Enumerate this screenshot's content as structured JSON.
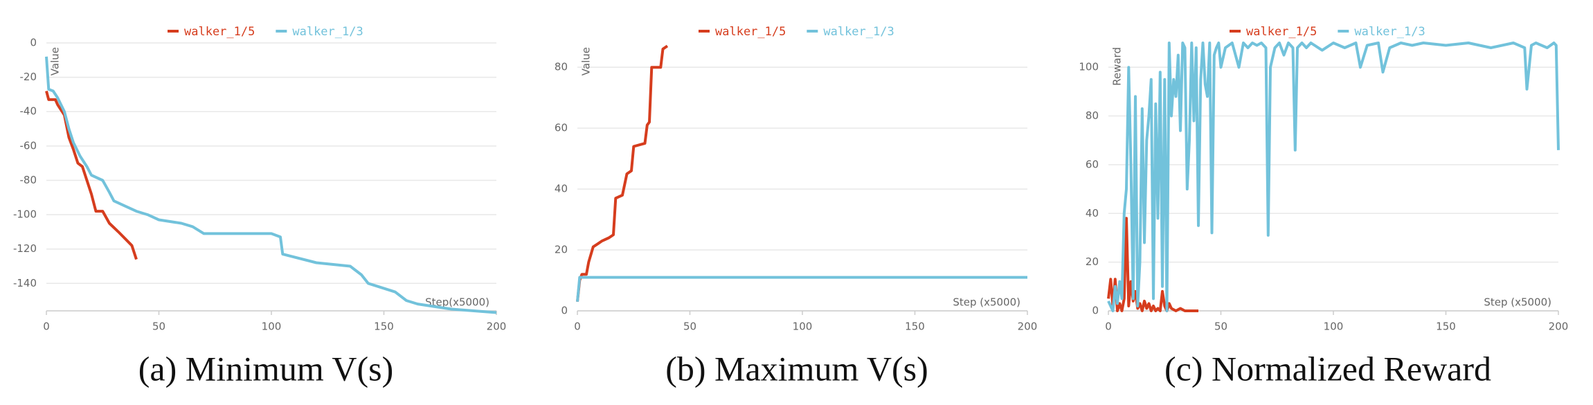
{
  "chart_data": [
    {
      "type": "line",
      "caption": "(a) Minimum V(s)",
      "y_label": "Value",
      "x_label": "Step(x5000)",
      "xlim": [
        0,
        200
      ],
      "xticks": [
        0,
        50,
        100,
        150,
        200
      ],
      "ylim": [
        -156,
        0
      ],
      "yticks": [
        0,
        -20,
        -40,
        -60,
        -80,
        -100,
        -120,
        -140
      ],
      "grid": true,
      "series": [
        {
          "name": "walker_1/5",
          "color": "#d63d1e",
          "x": [
            0,
            1,
            4,
            5,
            8,
            10,
            12,
            14,
            16,
            18,
            20,
            22,
            25,
            28,
            32,
            35,
            38,
            40
          ],
          "values": [
            -28,
            -33,
            -33,
            -36,
            -42,
            -55,
            -62,
            -70,
            -72,
            -80,
            -88,
            -98,
            -98,
            -105,
            -110,
            -114,
            -118,
            -126
          ]
        },
        {
          "name": "walker_1/3",
          "color": "#72c2db",
          "x": [
            0,
            1,
            3,
            5,
            8,
            10,
            12,
            15,
            18,
            20,
            25,
            28,
            30,
            35,
            40,
            45,
            50,
            60,
            65,
            70,
            100,
            104,
            105,
            120,
            135,
            140,
            143,
            155,
            160,
            165,
            180,
            200
          ],
          "values": [
            -8,
            -27,
            -28,
            -32,
            -40,
            -50,
            -58,
            -66,
            -72,
            -77,
            -80,
            -87,
            -92,
            -95,
            -98,
            -100,
            -103,
            -105,
            -107,
            -111,
            -111,
            -113,
            -123,
            -128,
            -130,
            -135,
            -140,
            -145,
            -150,
            -152,
            -155,
            -157
          ]
        }
      ]
    },
    {
      "type": "line",
      "caption": "(b) Maximum V(s)",
      "y_label": "Value",
      "x_label": "Step (x5000)",
      "xlim": [
        0,
        200
      ],
      "xticks": [
        0,
        50,
        100,
        150,
        200
      ],
      "ylim": [
        0,
        88
      ],
      "yticks": [
        0,
        20,
        40,
        60,
        80
      ],
      "grid": true,
      "series": [
        {
          "name": "walker_1/5",
          "color": "#d63d1e",
          "x": [
            0,
            1,
            2,
            4,
            5,
            7,
            9,
            11,
            14,
            16,
            17,
            20,
            22,
            24,
            25,
            30,
            31,
            32,
            33,
            37,
            38,
            40
          ],
          "values": [
            3,
            10,
            12,
            12,
            16,
            21,
            22,
            23,
            24,
            25,
            37,
            38,
            45,
            46,
            54,
            55,
            61,
            62,
            80,
            80,
            86,
            87
          ]
        },
        {
          "name": "walker_1/3",
          "color": "#72c2db",
          "x": [
            0,
            1,
            200
          ],
          "values": [
            3,
            11,
            11
          ]
        }
      ]
    },
    {
      "type": "line",
      "caption": "(c) Normalized Reward",
      "y_label": "Reward",
      "x_label": "Step (x5000)",
      "xlim": [
        0,
        200
      ],
      "xticks": [
        0,
        50,
        100,
        150,
        200
      ],
      "ylim": [
        0,
        110
      ],
      "yticks": [
        0,
        20,
        40,
        60,
        80,
        100
      ],
      "grid": true,
      "series": [
        {
          "name": "walker_1/5",
          "color": "#d63d1e",
          "x": [
            0,
            1,
            2,
            3,
            4,
            5,
            6,
            7,
            8,
            9,
            10,
            11,
            12,
            13,
            14,
            15,
            16,
            17,
            18,
            19,
            20,
            21,
            22,
            23,
            24,
            25,
            26,
            27,
            28,
            30,
            32,
            34,
            36,
            38,
            40
          ],
          "values": [
            5,
            13,
            2,
            13,
            0,
            3,
            0,
            5,
            38,
            2,
            12,
            4,
            8,
            1,
            3,
            0,
            4,
            1,
            3,
            0,
            2,
            0,
            1,
            0,
            8,
            2,
            0,
            3,
            1,
            0,
            1,
            0,
            0,
            0,
            0
          ]
        },
        {
          "name": "walker_1/3",
          "color": "#72c2db",
          "x": [
            0,
            2,
            3,
            4,
            5,
            6,
            7,
            8,
            9,
            10,
            11,
            12,
            13,
            14,
            15,
            16,
            17,
            18,
            19,
            20,
            21,
            22,
            23,
            24,
            25,
            26,
            27,
            28,
            29,
            30,
            31,
            32,
            33,
            34,
            35,
            36,
            37,
            38,
            39,
            40,
            41,
            42,
            43,
            44,
            45,
            46,
            47,
            48,
            49,
            50,
            52,
            55,
            58,
            60,
            62,
            64,
            66,
            68,
            70,
            71,
            72,
            74,
            76,
            78,
            80,
            82,
            83,
            84,
            86,
            88,
            90,
            95,
            100,
            105,
            110,
            112,
            115,
            120,
            122,
            125,
            130,
            135,
            140,
            150,
            160,
            170,
            180,
            185,
            186,
            188,
            190,
            195,
            198,
            199,
            200
          ],
          "values": [
            4,
            0,
            10,
            3,
            12,
            5,
            40,
            50,
            100,
            60,
            5,
            88,
            2,
            20,
            83,
            28,
            70,
            80,
            95,
            5,
            85,
            38,
            98,
            10,
            95,
            0,
            110,
            80,
            95,
            88,
            105,
            74,
            110,
            108,
            50,
            70,
            110,
            78,
            108,
            35,
            95,
            110,
            93,
            88,
            110,
            32,
            105,
            108,
            110,
            100,
            108,
            110,
            100,
            110,
            108,
            110,
            109,
            110,
            108,
            31,
            100,
            108,
            110,
            105,
            110,
            108,
            66,
            108,
            110,
            108,
            110,
            107,
            110,
            108,
            110,
            100,
            109,
            110,
            98,
            108,
            110,
            109,
            110,
            109,
            110,
            108,
            110,
            108,
            91,
            109,
            110,
            108,
            110,
            109,
            66
          ]
        }
      ]
    }
  ]
}
